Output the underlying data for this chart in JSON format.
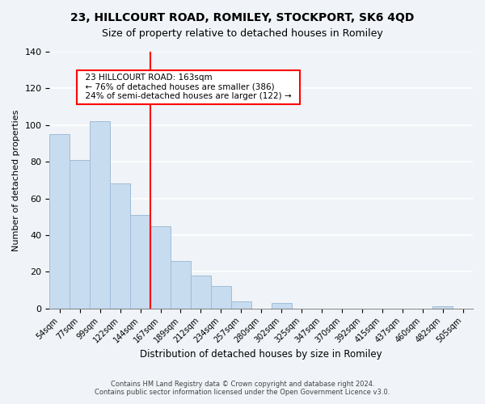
{
  "title_line1": "23, HILLCOURT ROAD, ROMILEY, STOCKPORT, SK6 4QD",
  "title_line2": "Size of property relative to detached houses in Romiley",
  "xlabel": "Distribution of detached houses by size in Romiley",
  "ylabel": "Number of detached properties",
  "bar_labels": [
    "54sqm",
    "77sqm",
    "99sqm",
    "122sqm",
    "144sqm",
    "167sqm",
    "189sqm",
    "212sqm",
    "234sqm",
    "257sqm",
    "280sqm",
    "302sqm",
    "325sqm",
    "347sqm",
    "370sqm",
    "392sqm",
    "415sqm",
    "437sqm",
    "460sqm",
    "482sqm",
    "505sqm"
  ],
  "bar_values": [
    95,
    81,
    102,
    68,
    51,
    45,
    26,
    18,
    12,
    4,
    0,
    3,
    0,
    0,
    0,
    0,
    0,
    0,
    0,
    1,
    0
  ],
  "bar_color": "#c8dcf0",
  "bar_edge_color": "#a0bcd8",
  "vline_x": 5,
  "vline_color": "red",
  "annotation_title": "23 HILLCOURT ROAD: 163sqm",
  "annotation_line1": "← 76% of detached houses are smaller (386)",
  "annotation_line2": "24% of semi-detached houses are larger (122) →",
  "annotation_box_color": "white",
  "annotation_box_edge": "red",
  "ylim": [
    0,
    140
  ],
  "footer_line1": "Contains HM Land Registry data © Crown copyright and database right 2024.",
  "footer_line2": "Contains public sector information licensed under the Open Government Licence v3.0.",
  "background_color": "#f0f4f8"
}
